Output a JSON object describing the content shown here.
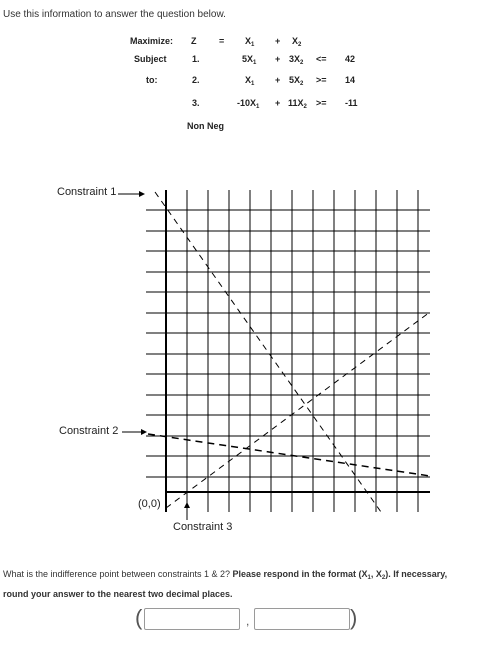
{
  "intro": "Use this information to answer the question below.",
  "lp": {
    "maximize_label": "Maximize:",
    "z": "Z",
    "eq": "=",
    "obj_x1": "X",
    "obj_plus": "+",
    "obj_x2": "X",
    "subject_label": "Subject",
    "to_label": "to:",
    "rows": [
      {
        "num": "1.",
        "c1": "5X",
        "op": "+",
        "c2": "3X",
        "rel": "<=",
        "rhs": "42"
      },
      {
        "num": "2.",
        "c1": "X",
        "op": "+",
        "c2": "5X",
        "rel": ">=",
        "rhs": "14"
      },
      {
        "num": "3.",
        "c1": "-10X",
        "op": "+",
        "c2": "11X",
        "rel": ">=",
        "rhs": "-11"
      }
    ],
    "sub1": "1",
    "sub2": "2",
    "nonneg": "Non  Neg"
  },
  "labels": {
    "c1": "Constraint 1",
    "c2": "Constraint 2",
    "c3": "Constraint 3",
    "origin": "(0,0)"
  },
  "question": {
    "text": "What is the indifference point between constraints 1 & 2? ",
    "bold": "Please respond in the format (X",
    "bold_sub1": "1",
    "bold_mid": ", X",
    "bold_sub2": "2",
    "bold_end": "). If necessary, round your answer to the nearest two decimal places."
  },
  "answer": {
    "open_paren": "(",
    "comma": ",",
    "close_paren": ")",
    "x1_value": "",
    "x2_value": ""
  }
}
